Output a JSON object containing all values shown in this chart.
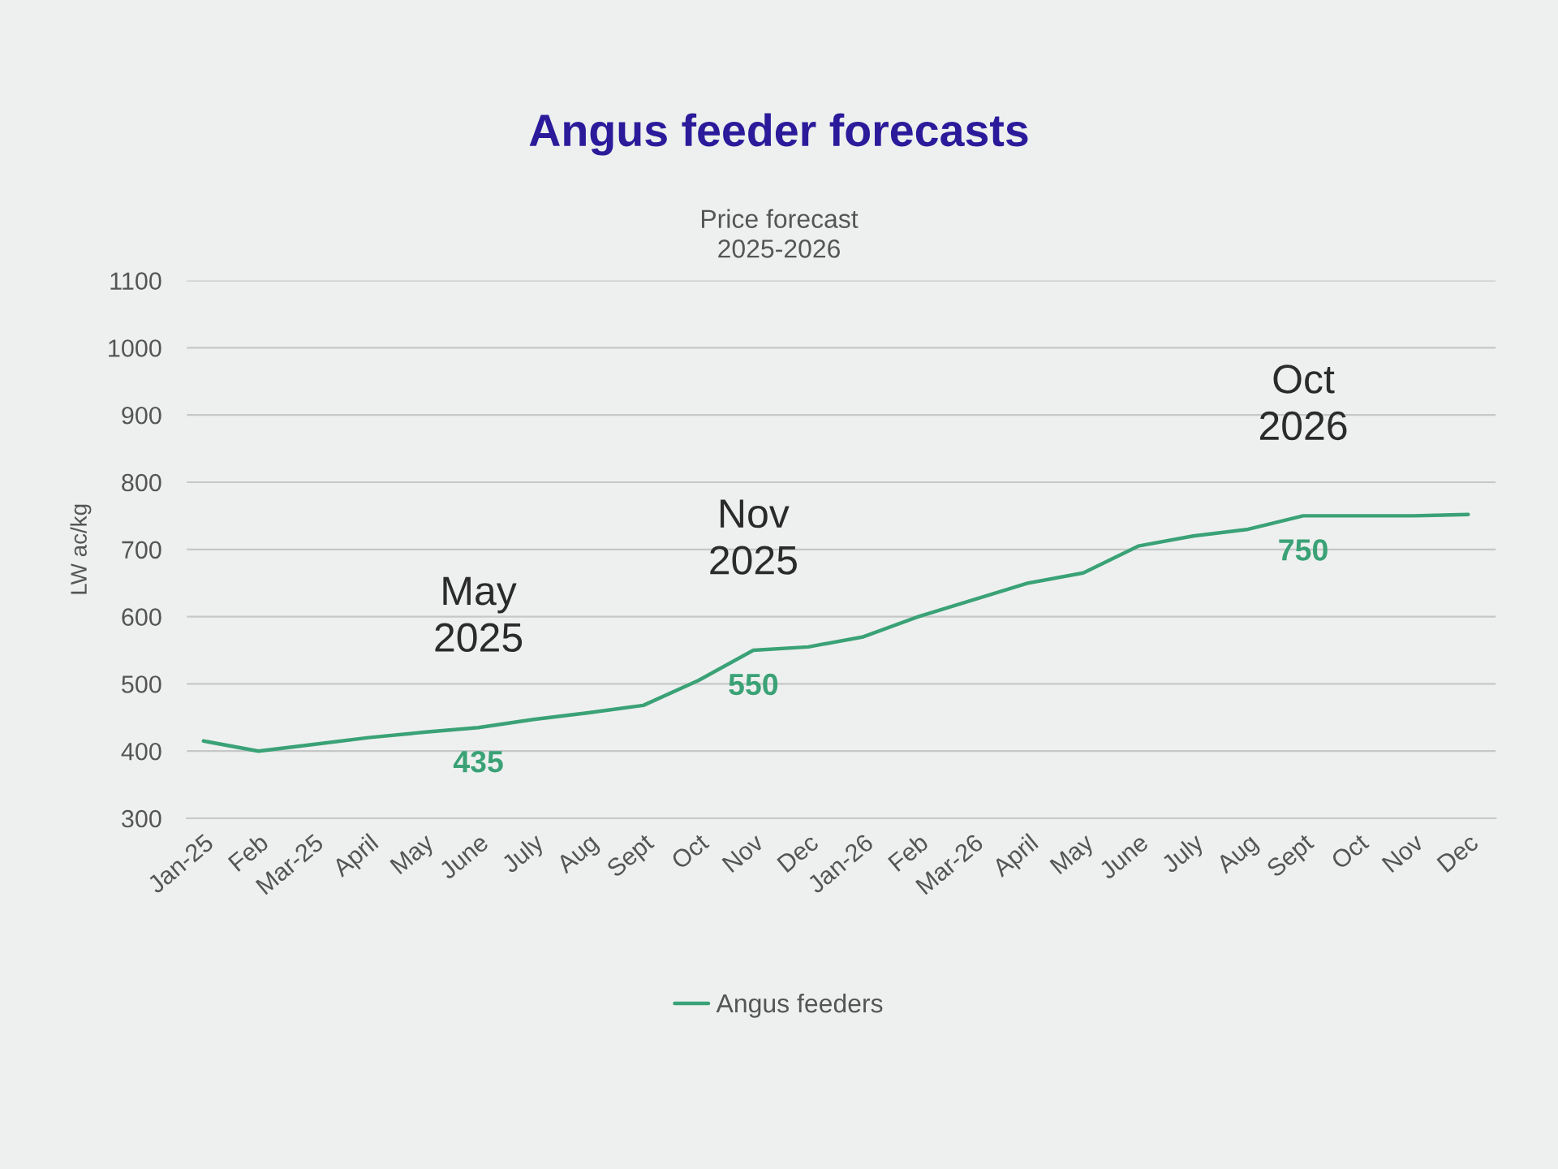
{
  "chart_data": {
    "type": "line",
    "title": "Angus feeder forecasts",
    "subtitle": "Price forecast\n2025-2026",
    "ylabel": "LW ac/kg",
    "categories": [
      "Jan-25",
      "Feb",
      "Mar-25",
      "April",
      "May",
      "June",
      "July",
      "Aug",
      "Sept",
      "Oct",
      "Nov",
      "Dec",
      "Jan-26",
      "Feb",
      "Mar-26",
      "April",
      "May",
      "June",
      "July",
      "Aug",
      "Sept",
      "Oct",
      "Nov",
      "Dec"
    ],
    "series": [
      {
        "name": "Angus feeders",
        "color": "#3aa276",
        "values": [
          415,
          400,
          410,
          420,
          428,
          435,
          447,
          457,
          468,
          505,
          550,
          555,
          570,
          600,
          625,
          650,
          665,
          705,
          720,
          730,
          750,
          750,
          750,
          752
        ],
        "value_labels": [
          null,
          null,
          null,
          null,
          null,
          "435",
          null,
          null,
          null,
          null,
          "550",
          null,
          null,
          null,
          null,
          null,
          null,
          null,
          null,
          null,
          "750",
          null,
          null,
          null
        ]
      }
    ],
    "ylim": [
      300,
      1100
    ],
    "yticks": [
      300,
      400,
      500,
      600,
      700,
      800,
      900,
      1000,
      1100
    ],
    "grid": "y",
    "legend": "bottom",
    "annotations": [
      "May\n2025",
      "Nov\n2025",
      "Oct\n2026"
    ]
  }
}
